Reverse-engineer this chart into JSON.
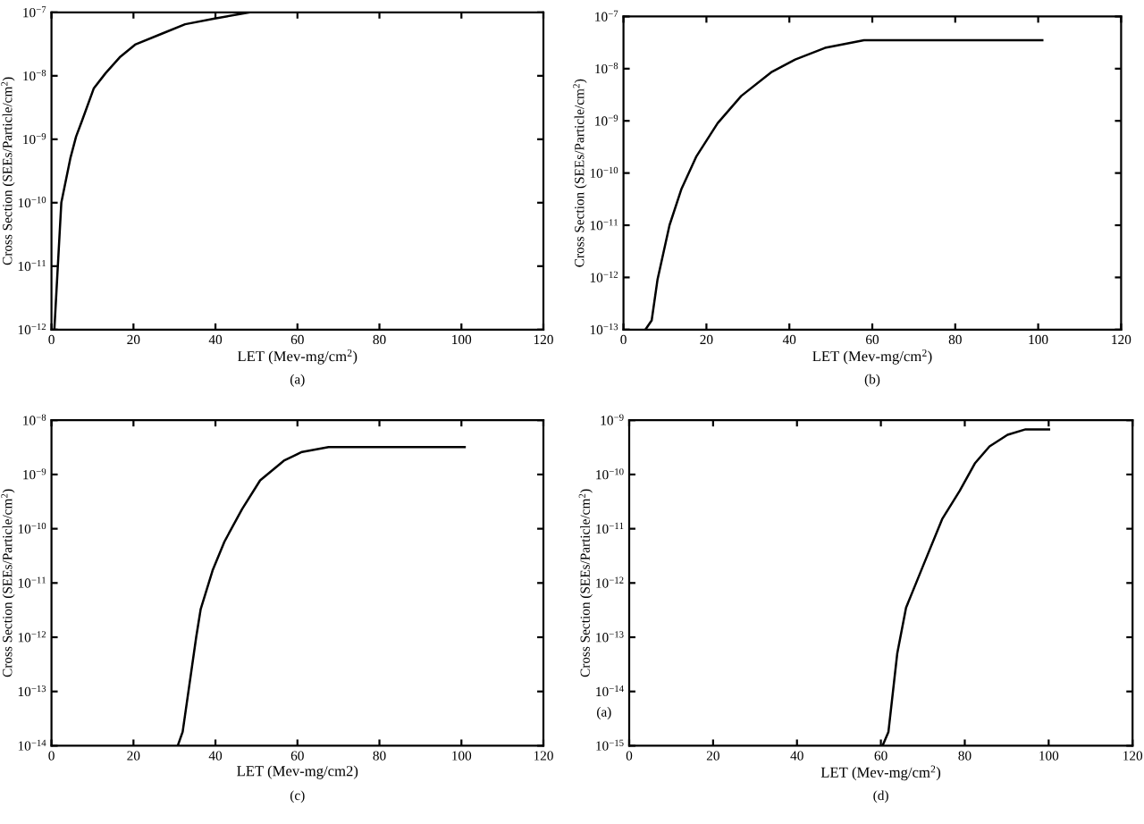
{
  "chart_data": [
    {
      "type": "line",
      "xlabel": "LET (Mev-mg/cm$^{2}$)",
      "ylabel": "Cross Section (SEEs/Particle/cm$^{2}$)",
      "annotations": [
        "(a)"
      ],
      "log": "y",
      "grid": false,
      "marker": "none",
      "line_style": "solid",
      "xlim": [
        0,
        120
      ],
      "xticks": [
        0,
        20,
        40,
        60,
        80,
        100,
        120
      ],
      "ylim": [
        1e-12,
        1e-07
      ],
      "yticks": [
        {
          "value": 1e-12,
          "label": "10$^{−12}$"
        },
        {
          "value": 1e-11,
          "label": "10$^{−11}$"
        },
        {
          "value": 1e-10,
          "label": "10$^{−10}$"
        },
        {
          "value": 1e-09,
          "label": "10$^{−9}$"
        },
        {
          "value": 1e-08,
          "label": "10$^{−8}$"
        },
        {
          "value": 1e-07,
          "label": "10$^{−7}$"
        }
      ],
      "series": [
        {
          "color": "#000000",
          "x": [
            0.7,
            2.4,
            4.6,
            6,
            7.5,
            10.3,
            13.2,
            16.8,
            20.4,
            26.9,
            32.6,
            39.8,
            48.4,
            55
          ],
          "values": [
            1e-12,
            1e-10,
            5e-10,
            1.1e-09,
            2e-09,
            6.3e-09,
            1.1e-08,
            2e-08,
            3.1e-08,
            4.6e-08,
            6.5e-08,
            8e-08,
            1e-07,
            1e-07
          ]
        }
      ]
    },
    {
      "type": "line",
      "xlabel": "LET (Mev-mg/cm$^{2}$)",
      "ylabel": "Cross Section (SEEs/Particle/cm$^{2}$)",
      "annotations": [
        "(b)"
      ],
      "log": "y",
      "grid": false,
      "marker": "none",
      "line_style": "solid",
      "xlim": [
        0,
        120
      ],
      "xticks": [
        0,
        20,
        40,
        60,
        80,
        100,
        120
      ],
      "ylim": [
        1e-13,
        1e-07
      ],
      "yticks": [
        {
          "value": 1e-13,
          "label": "10$^{−13}$"
        },
        {
          "value": 1e-12,
          "label": "10$^{−12}$"
        },
        {
          "value": 1e-11,
          "label": "10$^{−11}$"
        },
        {
          "value": 1e-10,
          "label": "10$^{−10}$"
        },
        {
          "value": 1e-09,
          "label": "10$^{−9}$"
        },
        {
          "value": 1e-08,
          "label": "10$^{−8}$"
        },
        {
          "value": 1e-07,
          "label": "10$^{−7}$"
        }
      ],
      "series": [
        {
          "color": "#000000",
          "x": [
            5.3,
            6.8,
            8.2,
            11.1,
            14,
            17.6,
            22.7,
            28.4,
            35.6,
            41.4,
            48.6,
            58,
            101
          ],
          "values": [
            1e-13,
            1.5e-13,
            9e-13,
            1e-11,
            5e-11,
            2.1e-10,
            9e-10,
            3e-09,
            8.5e-09,
            1.5e-08,
            2.5e-08,
            3.5e-08,
            3.5e-08
          ]
        }
      ]
    },
    {
      "type": "line",
      "xlabel": "LET (Mev-mg/cm2)",
      "ylabel": "Cross Section (SEEs/Particle/cm$^{2}$)",
      "annotations": [
        "(c)"
      ],
      "log": "y",
      "grid": false,
      "marker": "none",
      "line_style": "solid",
      "xlim": [
        0,
        120
      ],
      "xticks": [
        0,
        20,
        40,
        60,
        80,
        100,
        120
      ],
      "ylim": [
        1e-14,
        1e-08
      ],
      "yticks": [
        {
          "value": 1e-14,
          "label": "10$^{−14}$"
        },
        {
          "value": 1e-13,
          "label": "10$^{−13}$"
        },
        {
          "value": 1e-12,
          "label": "10$^{−12}$"
        },
        {
          "value": 1e-11,
          "label": "10$^{−11}$"
        },
        {
          "value": 1e-10,
          "label": "10$^{−10}$"
        },
        {
          "value": 1e-09,
          "label": "10$^{−9}$"
        },
        {
          "value": 1e-08,
          "label": "10$^{−8}$"
        }
      ],
      "series": [
        {
          "color": "#000000",
          "x": [
            30.8,
            32,
            35.3,
            36.4,
            39.3,
            42.2,
            46.5,
            50.9,
            56.7,
            61.1,
            67.6,
            100.8
          ],
          "values": [
            1e-14,
            1.8e-14,
            1e-12,
            3.3e-12,
            1.7e-11,
            5.8e-11,
            2.3e-10,
            7.8e-10,
            1.8e-09,
            2.6e-09,
            3.2e-09,
            3.2e-09
          ]
        }
      ]
    },
    {
      "type": "line",
      "xlabel": "LET (Mev-mg/cm$^{2}$)",
      "ylabel": "Cross Section (SEEs/Particle/cm$^{2}$)",
      "annotations": [
        "(a)",
        "(d)"
      ],
      "log": "y",
      "grid": false,
      "marker": "none",
      "line_style": "solid",
      "xlim": [
        0,
        120
      ],
      "xticks": [
        0,
        20,
        40,
        60,
        80,
        100,
        120
      ],
      "ylim": [
        1e-15,
        1e-09
      ],
      "yticks": [
        {
          "value": 1e-15,
          "label": "10$^{−15}$"
        },
        {
          "value": 1e-14,
          "label": "10$^{−14}$"
        },
        {
          "value": 1e-13,
          "label": "10$^{−13}$"
        },
        {
          "value": 1e-12,
          "label": "10$^{−12}$"
        },
        {
          "value": 1e-11,
          "label": "10$^{−11}$"
        },
        {
          "value": 1e-10,
          "label": "10$^{−10}$"
        },
        {
          "value": 1e-09,
          "label": "10$^{−9}$"
        }
      ],
      "series": [
        {
          "color": "#000000",
          "x": [
            60.4,
            61.8,
            63.9,
            66,
            70.3,
            74.6,
            78.8,
            82.4,
            85.9,
            90.2,
            94.5,
            100.1
          ],
          "values": [
            1e-15,
            1.8e-15,
            5e-14,
            3.5e-13,
            2.3e-12,
            1.5e-11,
            5e-11,
            1.6e-10,
            3.3e-10,
            5.4e-10,
            6.8e-10,
            6.8e-10
          ]
        }
      ]
    }
  ]
}
